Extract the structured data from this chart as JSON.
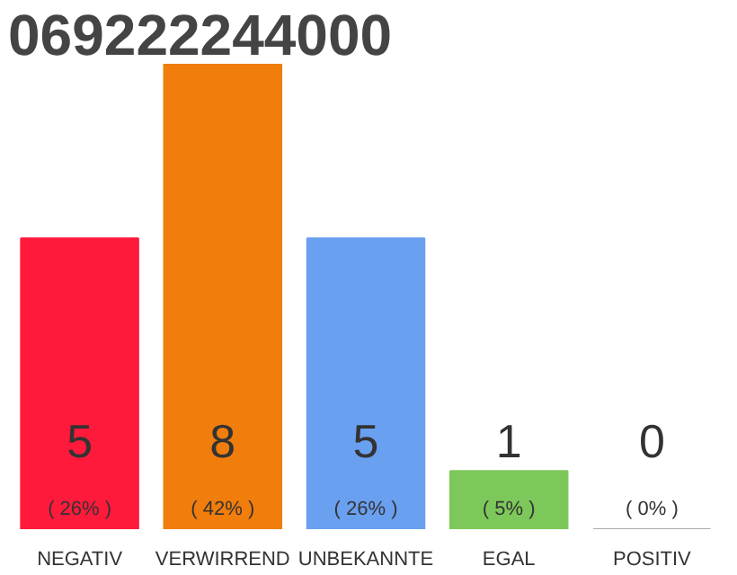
{
  "chart_data": {
    "type": "bar",
    "title": "069222244000",
    "categories": [
      "NEGATIV",
      "VERWIRREND",
      "UNBEKANNTE",
      "EGAL",
      "POSITIV"
    ],
    "values": [
      5,
      8,
      5,
      1,
      0
    ],
    "colors": [
      "#ff1a3c",
      "#f07d0c",
      "#6aa0f0",
      "#7dc85a",
      "#aaaaaa"
    ],
    "data_labels": true,
    "annotations": [
      "( 26% )",
      "( 42% )",
      "( 26% )",
      "( 5% )",
      "( 0% )"
    ],
    "grid": false
  }
}
